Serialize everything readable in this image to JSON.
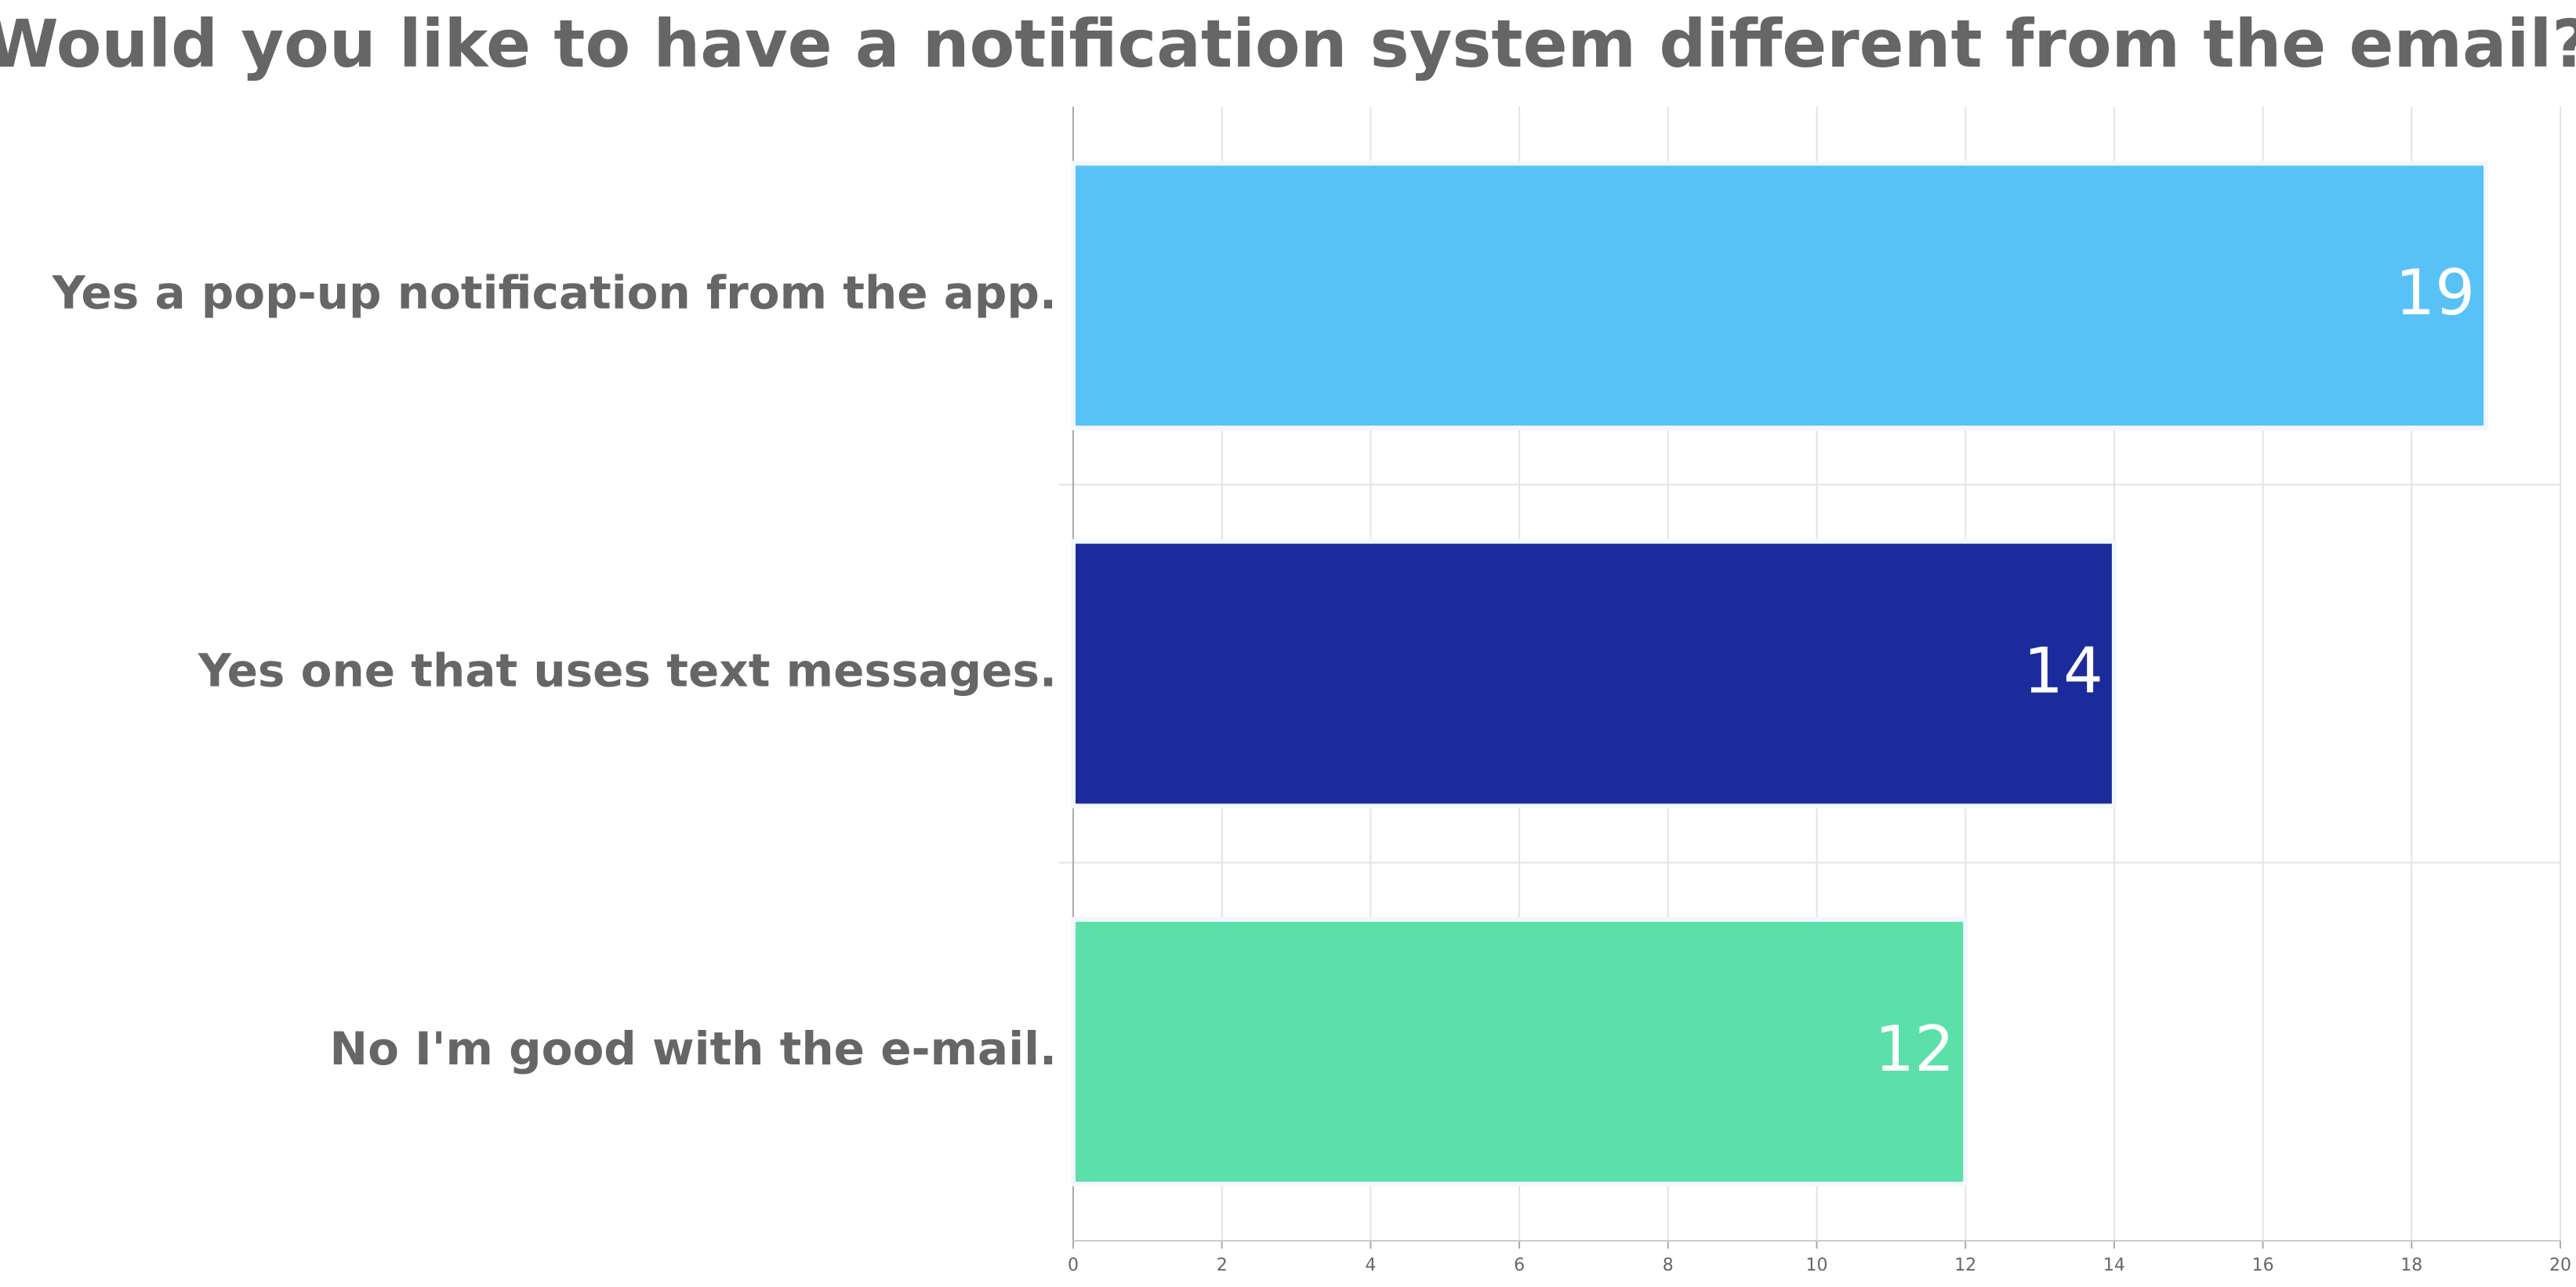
{
  "chart_data": {
    "type": "bar",
    "orientation": "horizontal",
    "title": "Would you like to have a notification system different from the email?",
    "categories": [
      "Yes a pop-up notification from the app.",
      "Yes one that uses text messages.",
      "No I'm good with the e-mail."
    ],
    "values": [
      19,
      14,
      12
    ],
    "colors": [
      "#58c2f6",
      "#1c2b9c",
      "#5be0a9"
    ],
    "xlim": [
      0,
      20
    ],
    "xticks": [
      0,
      2,
      4,
      6,
      8,
      10,
      12,
      14,
      16,
      18,
      20
    ],
    "grid": true
  }
}
